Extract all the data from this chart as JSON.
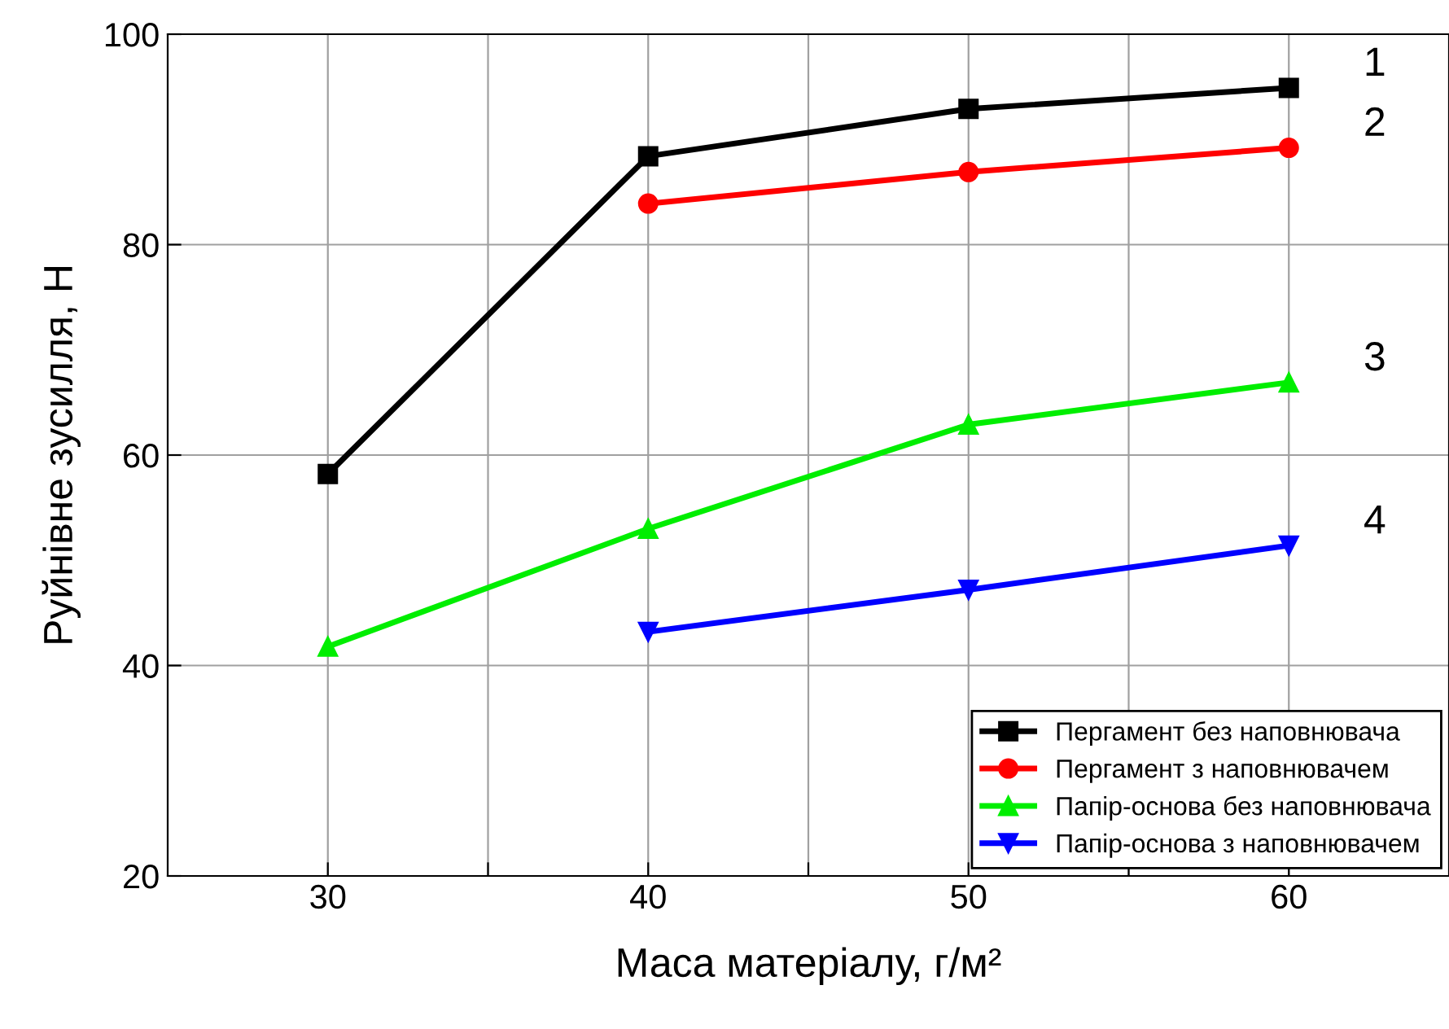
{
  "chart_data": {
    "type": "line",
    "xlabel": "Маса матеріалу, г/м²",
    "ylabel": "Руйнівне зусилля, Н",
    "xlim": [
      25,
      65
    ],
    "ylim": [
      20,
      100
    ],
    "xticks": [
      30,
      {
        "value": 35,
        "label": null
      },
      40,
      {
        "value": 45,
        "label": null
      },
      50,
      {
        "value": 55,
        "label": null
      },
      60
    ],
    "yticks": [
      20,
      40,
      60,
      80,
      100
    ],
    "grid": true,
    "legend": "bottom right",
    "series": [
      {
        "name": "Пергамент без наповнювача",
        "color": "#000000",
        "marker": "square",
        "x": [
          30,
          40,
          50,
          60
        ],
        "values": [
          58.2,
          88.4,
          92.9,
          94.9
        ]
      },
      {
        "name": "Пергамент з наповнювачем",
        "color": "#ff0000",
        "marker": "circle",
        "x": [
          40,
          50,
          60
        ],
        "values": [
          83.9,
          86.9,
          89.2
        ]
      },
      {
        "name": "Папір-основа без наповнювача",
        "color": "#00ee00",
        "marker": "triangle",
        "x": [
          30,
          40,
          50,
          60
        ],
        "values": [
          41.8,
          53.0,
          62.9,
          66.9
        ]
      },
      {
        "name": "Папір-основа з наповнювачем",
        "color": "#0000ff",
        "marker": "triangle_down",
        "x": [
          40,
          50,
          60
        ],
        "values": [
          43.2,
          47.2,
          51.4
        ]
      }
    ],
    "annotations": [
      "1",
      "2",
      "3",
      "4"
    ]
  }
}
